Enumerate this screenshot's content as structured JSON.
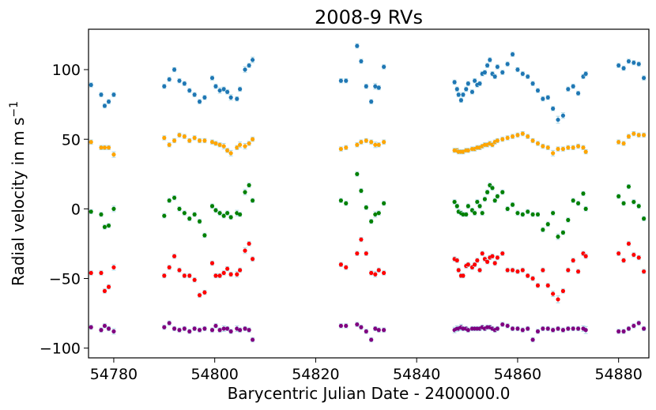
{
  "chart_data": {
    "type": "scatter",
    "title": "2008-9 RVs",
    "xlabel": "Barycentric Julian Date - 2400000.0",
    "ylabel_text": "Radial velocity in m s",
    "ylabel_exponent": "−1",
    "xlim": [
      54775,
      54886
    ],
    "ylim": [
      -107,
      129
    ],
    "xticks": [
      54780,
      54800,
      54820,
      54840,
      54860,
      54880
    ],
    "yticks": [
      100,
      50,
      0,
      -50,
      -100
    ],
    "ytick_labels": [
      "100",
      "50",
      "0",
      "−50",
      "−100"
    ],
    "grid": false,
    "legend": "none",
    "error_bar_color": "#add8e6",
    "series": [
      {
        "color": "#1f77b4",
        "x": [
          54775.5,
          54777.5,
          54778.2,
          54779,
          54780,
          54790,
          54791,
          54792,
          54793,
          54794,
          54795,
          54796,
          54797,
          54798,
          54799.5,
          54800.2,
          54801,
          54801.8,
          54802.5,
          54803.2,
          54804.4,
          54805,
          54806,
          54806.8,
          54807.5,
          54825,
          54826,
          54828.2,
          54829,
          54830,
          54831,
          54831.8,
          54832.5,
          54833.5,
          54847.5,
          54848,
          54848.3,
          54848.8,
          54849.2,
          54849.8,
          54850.2,
          54851,
          54851.5,
          54852,
          54852.5,
          54853,
          54853.5,
          54854,
          54854.5,
          54855,
          54855.5,
          54856,
          54857,
          54858,
          54859,
          54860,
          54861,
          54862,
          54863,
          54864,
          54865,
          54866,
          54867,
          54868,
          54869,
          54870,
          54871,
          54872,
          54873,
          54873.5,
          54880,
          54881,
          54882,
          54883,
          54884,
          54885
        ],
        "y": [
          89,
          82,
          74,
          77,
          82,
          88,
          93,
          100,
          92,
          90,
          85,
          82,
          77,
          80,
          94,
          88,
          85,
          86,
          84,
          80,
          79,
          86,
          100,
          103,
          107,
          92,
          92,
          117,
          106,
          88,
          77,
          88,
          87,
          102,
          91,
          86,
          82,
          78,
          82,
          86,
          90,
          84,
          92,
          89,
          90,
          97,
          98,
          103,
          107,
          97,
          95,
          102,
          98,
          104,
          111,
          100,
          97,
          95,
          90,
          85,
          79,
          80,
          72,
          64,
          67,
          86,
          88,
          83,
          95,
          97,
          103,
          101,
          106,
          105,
          104,
          94
        ],
        "err": [
          1.5,
          1.5,
          1.5,
          1.5,
          1.5,
          1.5,
          1.5,
          1.5,
          1.5,
          1.5,
          1.5,
          1.5,
          1.5,
          1.5,
          1.5,
          1.5,
          2,
          1.5,
          1.5,
          2,
          1.5,
          1.5,
          2,
          1.5,
          2,
          1.5,
          1.5,
          1.5,
          1.5,
          1.5,
          1.5,
          2,
          1.5,
          1.5,
          1.5,
          1.5,
          1.5,
          1.5,
          1.5,
          1.5,
          1.5,
          1.5,
          1.5,
          1.5,
          1.5,
          1.5,
          1.5,
          1.5,
          1.5,
          1.5,
          1.5,
          1.5,
          1.5,
          1.5,
          1.5,
          1.5,
          1.5,
          1.5,
          1.5,
          1.5,
          1.5,
          1.5,
          1.5,
          2.5,
          2,
          1.5,
          1.5,
          1.5,
          1.5,
          1.5,
          1.5,
          1.5,
          1.5,
          1.5,
          1.5,
          1.5
        ]
      },
      {
        "color": "#ffa500",
        "x": [
          54775.5,
          54777.5,
          54778.2,
          54779,
          54780,
          54790,
          54791,
          54792,
          54793,
          54794,
          54795,
          54796,
          54797,
          54798,
          54799.5,
          54800.2,
          54801,
          54801.8,
          54802.5,
          54803.2,
          54804.4,
          54805,
          54806,
          54806.8,
          54807.5,
          54825,
          54826,
          54828.2,
          54829,
          54830,
          54831,
          54831.8,
          54832.5,
          54833.5,
          54847.5,
          54848,
          54848.3,
          54848.8,
          54849.2,
          54849.8,
          54850.2,
          54851,
          54851.5,
          54852,
          54852.5,
          54853,
          54853.5,
          54854,
          54854.5,
          54855,
          54855.5,
          54856,
          54857,
          54858,
          54859,
          54860,
          54861,
          54862,
          54863,
          54864,
          54865,
          54866,
          54867,
          54868,
          54869,
          54870,
          54871,
          54872,
          54873,
          54873.5,
          54880,
          54881,
          54882,
          54883,
          54884,
          54885
        ],
        "y": [
          48,
          44,
          44,
          44,
          39,
          51,
          46,
          49,
          53,
          52,
          49,
          51,
          49,
          49,
          48,
          47,
          46,
          45,
          42,
          40,
          44,
          46,
          45,
          47,
          50,
          43,
          44,
          46,
          48,
          49,
          48,
          46,
          46,
          48,
          42,
          42,
          41,
          41,
          41,
          42,
          42,
          43,
          43,
          44,
          44,
          45,
          46,
          46,
          47,
          46,
          48,
          49,
          50,
          51,
          52,
          53,
          54,
          52,
          49,
          47,
          45,
          44,
          40,
          43,
          43,
          44,
          44,
          45,
          44,
          41,
          48,
          47,
          52,
          54,
          53,
          53
        ],
        "err": [
          1.5,
          1.5,
          1.5,
          1.5,
          2,
          1.5,
          1.5,
          1.5,
          1.5,
          1.5,
          1.5,
          1.5,
          1.5,
          1.5,
          1.5,
          1.5,
          1.5,
          2,
          1.5,
          2,
          1.5,
          2,
          2,
          1.5,
          1.5,
          1.5,
          1.5,
          1.5,
          1.5,
          1.5,
          1.5,
          2,
          1.5,
          1.5,
          1.5,
          1.5,
          1.5,
          1.5,
          1.5,
          1.5,
          1.5,
          1.5,
          1.5,
          1.5,
          1.5,
          1.5,
          1.5,
          1.5,
          1.5,
          1.5,
          1.5,
          1.5,
          1.5,
          1.5,
          1.5,
          1.5,
          1.5,
          1.5,
          1.5,
          1.5,
          1.5,
          1.5,
          2,
          1.5,
          1.5,
          1.5,
          1.5,
          1.5,
          1.5,
          1.5,
          1.5,
          1.5,
          1.5,
          1.5,
          1.5,
          1.5
        ]
      },
      {
        "color": "#008000",
        "x": [
          54775.5,
          54777.5,
          54778.2,
          54779,
          54780,
          54790,
          54791,
          54792,
          54793,
          54794,
          54795,
          54796,
          54797,
          54798,
          54799.5,
          54800.2,
          54801,
          54801.8,
          54802.5,
          54803.2,
          54804.4,
          54805,
          54806,
          54806.8,
          54807.5,
          54825,
          54826,
          54828.2,
          54829,
          54830,
          54831,
          54831.8,
          54832.5,
          54833.5,
          54847.5,
          54848,
          54848.3,
          54848.8,
          54849.2,
          54849.8,
          54850.2,
          54851,
          54851.5,
          54852,
          54852.5,
          54853,
          54853.5,
          54854,
          54854.5,
          54855,
          54855.5,
          54856,
          54857,
          54858,
          54859,
          54860,
          54861,
          54862,
          54863,
          54864,
          54865,
          54866,
          54867,
          54868,
          54869,
          54870,
          54871,
          54872,
          54873,
          54873.5,
          54880,
          54881,
          54882,
          54883,
          54884,
          54885
        ],
        "y": [
          -2,
          -4,
          -13,
          -12,
          0,
          -5,
          6,
          8,
          0,
          -3,
          -7,
          -4,
          -9,
          -19,
          2,
          -1,
          -3,
          -5,
          -3,
          -6,
          -3,
          -4,
          12,
          17,
          6,
          6,
          4,
          25,
          13,
          1,
          -9,
          -4,
          -3,
          4,
          5,
          2,
          -2,
          -3,
          -4,
          -4,
          2,
          -1,
          -3,
          5,
          2,
          -3,
          7,
          12,
          17,
          15,
          6,
          9,
          12,
          0,
          3,
          -3,
          -4,
          -2,
          -4,
          -4,
          -15,
          -11,
          -3,
          -20,
          -17,
          -8,
          6,
          4,
          11,
          0,
          9,
          4,
          16,
          5,
          2,
          -7
        ],
        "err": [
          1.5,
          1.5,
          1.5,
          1.5,
          2,
          1.5,
          1.5,
          1.5,
          1.5,
          1.5,
          1.5,
          1.5,
          1.5,
          1.5,
          1.5,
          1.5,
          1.5,
          1.5,
          1.5,
          1.5,
          2,
          1.5,
          2,
          1.5,
          1.5,
          1.5,
          1.5,
          1.5,
          1.5,
          1.5,
          1.5,
          2,
          1.5,
          1.5,
          1.5,
          1.5,
          1.5,
          1.5,
          1.5,
          1.5,
          1.5,
          1.5,
          1.5,
          1.5,
          1.5,
          1.5,
          1.5,
          1.5,
          1.5,
          1.5,
          1.5,
          1.5,
          1.5,
          1.5,
          1.5,
          1.5,
          1.5,
          1.5,
          1.5,
          1.5,
          1.5,
          1.5,
          1.5,
          2,
          1.5,
          1.5,
          1.5,
          1.5,
          1.5,
          1.5,
          1.5,
          1.5,
          1.5,
          1.5,
          1.5,
          1.5
        ]
      },
      {
        "color": "#ff0000",
        "x": [
          54775.5,
          54777.5,
          54778.2,
          54779,
          54780,
          54790,
          54791,
          54792,
          54793,
          54794,
          54795,
          54796,
          54797,
          54798,
          54799.5,
          54800.2,
          54801,
          54801.8,
          54802.5,
          54803.2,
          54804.4,
          54805,
          54806,
          54806.8,
          54807.5,
          54825,
          54826,
          54828.2,
          54829,
          54830,
          54831,
          54831.8,
          54832.5,
          54833.5,
          54847.5,
          54848,
          54848.3,
          54848.8,
          54849.2,
          54849.8,
          54850.2,
          54851,
          54851.5,
          54852,
          54852.5,
          54853,
          54853.5,
          54854,
          54854.5,
          54855,
          54855.5,
          54856,
          54857,
          54858,
          54859,
          54860,
          54861,
          54862,
          54863,
          54864,
          54865,
          54866,
          54867,
          54868,
          54869,
          54870,
          54871,
          54872,
          54873,
          54873.5,
          54880,
          54881,
          54882,
          54883,
          54884,
          54885
        ],
        "y": [
          -46,
          -46,
          -59,
          -56,
          -42,
          -48,
          -42,
          -34,
          -44,
          -48,
          -48,
          -51,
          -62,
          -60,
          -39,
          -48,
          -48,
          -46,
          -43,
          -47,
          -47,
          -44,
          -30,
          -25,
          -36,
          -40,
          -42,
          -32,
          -22,
          -32,
          -46,
          -47,
          -44,
          -46,
          -36,
          -37,
          -44,
          -48,
          -48,
          -41,
          -40,
          -42,
          -40,
          -37,
          -44,
          -32,
          -36,
          -38,
          -35,
          -34,
          -39,
          -35,
          -32,
          -44,
          -44,
          -45,
          -44,
          -48,
          -50,
          -55,
          -44,
          -55,
          -61,
          -65,
          -59,
          -44,
          -37,
          -45,
          -32,
          -34,
          -32,
          -37,
          -25,
          -33,
          -35,
          -45
        ],
        "err": [
          1.5,
          1.5,
          1.5,
          1.5,
          2,
          1.5,
          1.5,
          1.5,
          1.5,
          1.5,
          1.5,
          1.5,
          1.5,
          1.5,
          1.5,
          1.5,
          1.5,
          1.5,
          1.5,
          1.5,
          2,
          1.5,
          2,
          1.5,
          1.5,
          1.5,
          1.5,
          1.5,
          1.5,
          1.5,
          1.5,
          2,
          1.5,
          1.5,
          1.5,
          1.5,
          1.5,
          1.5,
          1.5,
          1.5,
          1.5,
          1.5,
          1.5,
          1.5,
          1.5,
          1.5,
          1.5,
          1.5,
          1.5,
          1.5,
          1.5,
          1.5,
          1.5,
          1.5,
          1.5,
          1.5,
          1.5,
          1.5,
          1.5,
          1.5,
          1.5,
          1.5,
          2,
          2.5,
          1.5,
          1.5,
          1.5,
          1.5,
          1.5,
          1.5,
          1.5,
          1.5,
          1.5,
          1.5,
          1.5,
          1.5
        ]
      },
      {
        "color": "#800080",
        "x": [
          54775.5,
          54777.5,
          54778.2,
          54779,
          54780,
          54790,
          54791,
          54792,
          54793,
          54794,
          54795,
          54796,
          54797,
          54798,
          54799.5,
          54800.2,
          54801,
          54801.8,
          54802.5,
          54803.2,
          54804.4,
          54805,
          54806,
          54806.8,
          54807.5,
          54825,
          54826,
          54828.2,
          54829,
          54830,
          54831,
          54831.8,
          54832.5,
          54833.5,
          54847.5,
          54848,
          54848.3,
          54848.8,
          54849.2,
          54849.8,
          54850.2,
          54851,
          54851.5,
          54852,
          54852.5,
          54853,
          54853.5,
          54854,
          54854.5,
          54855,
          54855.5,
          54856,
          54857,
          54858,
          54859,
          54860,
          54861,
          54862,
          54863,
          54864,
          54865,
          54866,
          54867,
          54868,
          54869,
          54870,
          54871,
          54872,
          54873,
          54873.5,
          54880,
          54881,
          54882,
          54883,
          54884,
          54885
        ],
        "y": [
          -85,
          -87,
          -84,
          -86,
          -88,
          -85,
          -82,
          -86,
          -87,
          -86,
          -88,
          -86,
          -87,
          -86,
          -87,
          -84,
          -87,
          -86,
          -86,
          -88,
          -86,
          -87,
          -86,
          -87,
          -94,
          -84,
          -84,
          -83,
          -85,
          -88,
          -94,
          -86,
          -87,
          -87,
          -87,
          -86,
          -86,
          -85,
          -86,
          -86,
          -87,
          -86,
          -86,
          -86,
          -86,
          -85,
          -86,
          -85,
          -85,
          -86,
          -87,
          -86,
          -83,
          -84,
          -86,
          -86,
          -87,
          -86,
          -94,
          -88,
          -86,
          -86,
          -87,
          -86,
          -87,
          -86,
          -86,
          -86,
          -86,
          -87,
          -88,
          -88,
          -86,
          -84,
          -82,
          -86
        ],
        "err": [
          1.5,
          1.5,
          1.5,
          1.5,
          2,
          1.5,
          1.5,
          1.5,
          1.5,
          1.5,
          1.5,
          1.5,
          1.5,
          1.5,
          1.5,
          1.5,
          1.5,
          2,
          1.5,
          1.5,
          2,
          1.5,
          1.5,
          1.5,
          1.5,
          1.5,
          1.5,
          1.5,
          1.5,
          1.5,
          1.5,
          1.5,
          1.5,
          1.5,
          2,
          2,
          1.5,
          2,
          1.5,
          1.5,
          1.5,
          1.5,
          1.5,
          1.5,
          1.5,
          1.5,
          1.5,
          1.5,
          1.5,
          1.5,
          1.5,
          1.5,
          1.5,
          1.5,
          1.5,
          1.5,
          1.5,
          1.5,
          1.5,
          1.5,
          1.5,
          1.5,
          1.5,
          1.5,
          1.5,
          1.5,
          1.5,
          1.5,
          2,
          2.5,
          1.5,
          1.5,
          1.5,
          1.5,
          1.5,
          1.5
        ]
      }
    ]
  }
}
